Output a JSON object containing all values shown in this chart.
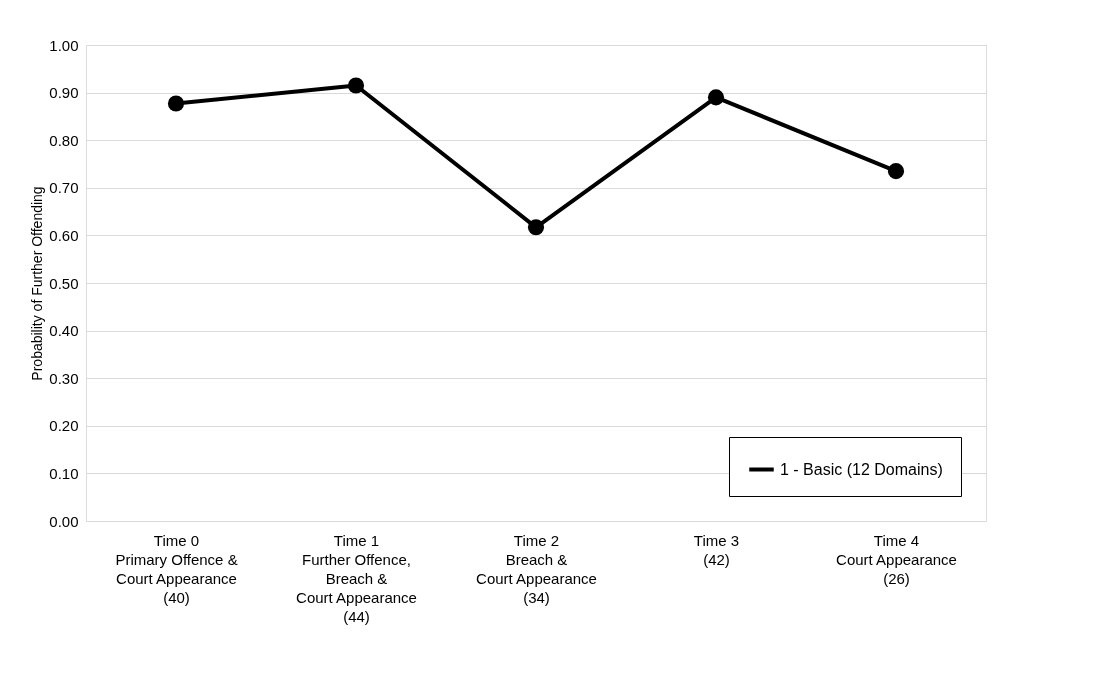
{
  "chart_data": {
    "type": "line",
    "ylabel": "Probability of Further Offending",
    "categories": [
      "Time 0\nPrimary Offence &\nCourt Appearance\n(40)",
      "Time 1\nFurther Offence,\nBreach &\nCourt Appearance\n(44)",
      "Time 2\nBreach &\nCourt Appearance\n(34)",
      "Time 3\n(42)",
      "Time 4\nCourt Appearance\n(26)"
    ],
    "series": [
      {
        "name": "1 - Basic (12 Domains)",
        "color": "#000000",
        "values": [
          0.877,
          0.915,
          0.617,
          0.89,
          0.735
        ]
      }
    ],
    "ylim": [
      0,
      1
    ],
    "yticks": [
      {
        "value": 0,
        "label": "0.00"
      },
      {
        "value": 0.1,
        "label": "0.10"
      },
      {
        "value": 0.2,
        "label": "0.20"
      },
      {
        "value": 0.3,
        "label": "0.30"
      },
      {
        "value": 0.4,
        "label": "0.40"
      },
      {
        "value": 0.5,
        "label": "0.50"
      },
      {
        "value": 0.6,
        "label": "0.60"
      },
      {
        "value": 0.7,
        "label": "0.70"
      },
      {
        "value": 0.8,
        "label": "0.80"
      },
      {
        "value": 0.9,
        "label": "0.90"
      },
      {
        "value": 1,
        "label": "1.00"
      }
    ],
    "grid": "y",
    "legend": "bottom right",
    "marker": "circle",
    "line_style": "solid"
  }
}
